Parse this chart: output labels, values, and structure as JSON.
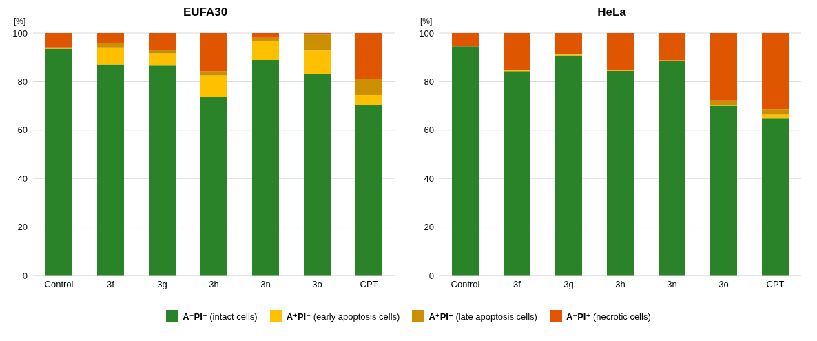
{
  "chart_data": [
    {
      "type": "bar",
      "title": "EUFA30",
      "ylabel": "[%]",
      "stacked": true,
      "categories": [
        "Control",
        "3f",
        "3g",
        "3h",
        "3n",
        "3o",
        "CPT"
      ],
      "ylim": [
        0,
        100
      ],
      "yticks": [
        0,
        20,
        40,
        60,
        80,
        100
      ],
      "grid": "y",
      "legend": "bottom",
      "series": [
        {
          "name": "A⁻PI⁻ (intact cells)",
          "color": "#2a8229",
          "values": [
            93.6,
            87.1,
            86.6,
            73.6,
            88.9,
            83.2,
            70.2
          ]
        },
        {
          "name": "A⁺PI⁻ (early apoptosis cells)",
          "color": "#ffc000",
          "values": [
            0.5,
            7.0,
            5.0,
            8.9,
            7.8,
            9.6,
            4.2
          ]
        },
        {
          "name": "A⁺PI⁺ (late apoptosis cells)",
          "color": "#cc8f00",
          "values": [
            0,
            1.7,
            1.6,
            1.8,
            1.4,
            6.5,
            6.7
          ]
        },
        {
          "name": "A⁻PI⁺ (necrotic cells)",
          "color": "#e05500",
          "values": [
            5.9,
            4.2,
            6.8,
            15.7,
            1.9,
            0.7,
            18.9
          ]
        }
      ]
    },
    {
      "type": "bar",
      "title": "HeLa",
      "ylabel": "[%]",
      "stacked": true,
      "categories": [
        "Control",
        "3f",
        "3g",
        "3h",
        "3n",
        "3o",
        "CPT"
      ],
      "ylim": [
        0,
        100
      ],
      "yticks": [
        0,
        20,
        40,
        60,
        80,
        100
      ],
      "grid": "y",
      "series": [
        {
          "color": "#2a8229",
          "values": [
            94.5,
            84.3,
            90.8,
            84.4,
            88.5,
            70.0,
            64.7
          ]
        },
        {
          "color": "#ffc000",
          "values": [
            0,
            0.4,
            0.4,
            0.2,
            0.3,
            0.4,
            1.6
          ]
        },
        {
          "color": "#cc8f00",
          "values": [
            0,
            0,
            0,
            0,
            0,
            1.8,
            2.4
          ]
        },
        {
          "color": "#e05500",
          "values": [
            5.5,
            15.3,
            8.8,
            15.4,
            11.2,
            27.8,
            31.3
          ]
        }
      ]
    }
  ]
}
